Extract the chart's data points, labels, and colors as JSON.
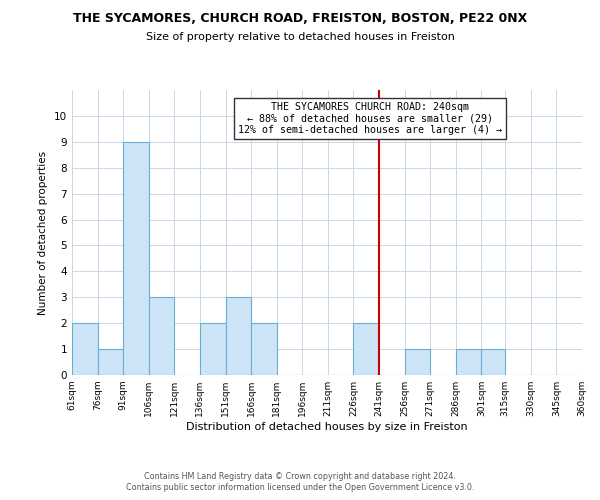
{
  "title": "THE SYCAMORES, CHURCH ROAD, FREISTON, BOSTON, PE22 0NX",
  "subtitle": "Size of property relative to detached houses in Freiston",
  "xlabel": "Distribution of detached houses by size in Freiston",
  "ylabel": "Number of detached properties",
  "bar_color": "#cce4f5",
  "bar_edgecolor": "#6aaed6",
  "bin_edges": [
    61,
    76,
    91,
    106,
    121,
    136,
    151,
    166,
    181,
    196,
    211,
    226,
    241,
    256,
    271,
    286,
    301,
    315,
    330,
    345,
    360
  ],
  "counts": [
    2,
    1,
    9,
    3,
    0,
    2,
    3,
    2,
    0,
    0,
    0,
    2,
    0,
    1,
    0,
    1,
    1,
    0,
    0,
    0
  ],
  "tick_labels": [
    "61sqm",
    "76sqm",
    "91sqm",
    "106sqm",
    "121sqm",
    "136sqm",
    "151sqm",
    "166sqm",
    "181sqm",
    "196sqm",
    "211sqm",
    "226sqm",
    "241sqm",
    "256sqm",
    "271sqm",
    "286sqm",
    "301sqm",
    "315sqm",
    "330sqm",
    "345sqm",
    "360sqm"
  ],
  "property_line_color": "#cc0000",
  "annotation_title": "THE SYCAMORES CHURCH ROAD: 240sqm",
  "annotation_line1": "← 88% of detached houses are smaller (29)",
  "annotation_line2": "12% of semi-detached houses are larger (4) →",
  "ylim": [
    0,
    11
  ],
  "yticks": [
    0,
    1,
    2,
    3,
    4,
    5,
    6,
    7,
    8,
    9,
    10,
    11
  ],
  "footnote1": "Contains HM Land Registry data © Crown copyright and database right 2024.",
  "footnote2": "Contains public sector information licensed under the Open Government Licence v3.0.",
  "background_color": "#ffffff",
  "grid_color": "#c8d8e8"
}
